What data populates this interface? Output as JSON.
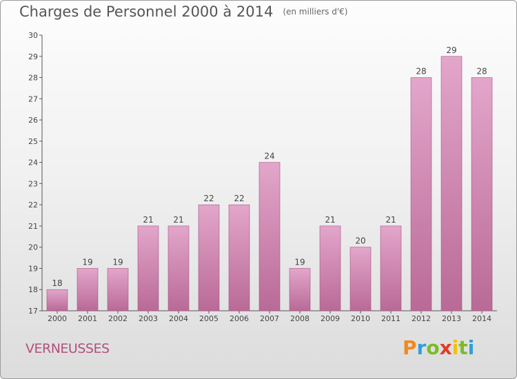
{
  "header": {
    "title": "Charges de Personnel 2000 à 2014",
    "unit": "(en milliers d'€)"
  },
  "footer": {
    "commune": "VERNEUSSES",
    "brand": "Proxiti"
  },
  "colors": {
    "bar_top": "#e3a6cb",
    "bar_bottom": "#b96a96",
    "bar_edge": "#a45683",
    "brand_letters": [
      "#f08a1e",
      "#2f9fd6",
      "#7cbb2a",
      "#e23c2a",
      "#f2c200",
      "#7cbb2a",
      "#2f9fd6"
    ]
  },
  "chart_data": {
    "type": "bar",
    "categories": [
      "2000",
      "2001",
      "2002",
      "2003",
      "2004",
      "2005",
      "2006",
      "2007",
      "2008",
      "2009",
      "2010",
      "2011",
      "2012",
      "2013",
      "2014"
    ],
    "values": [
      18,
      19,
      19,
      21,
      21,
      22,
      22,
      24,
      19,
      21,
      20,
      21,
      28,
      29,
      28
    ],
    "ylim": [
      17,
      30
    ],
    "yticks": [
      17,
      18,
      19,
      20,
      21,
      22,
      23,
      24,
      25,
      26,
      27,
      28,
      29,
      30
    ],
    "grid": false,
    "legend": "none"
  }
}
